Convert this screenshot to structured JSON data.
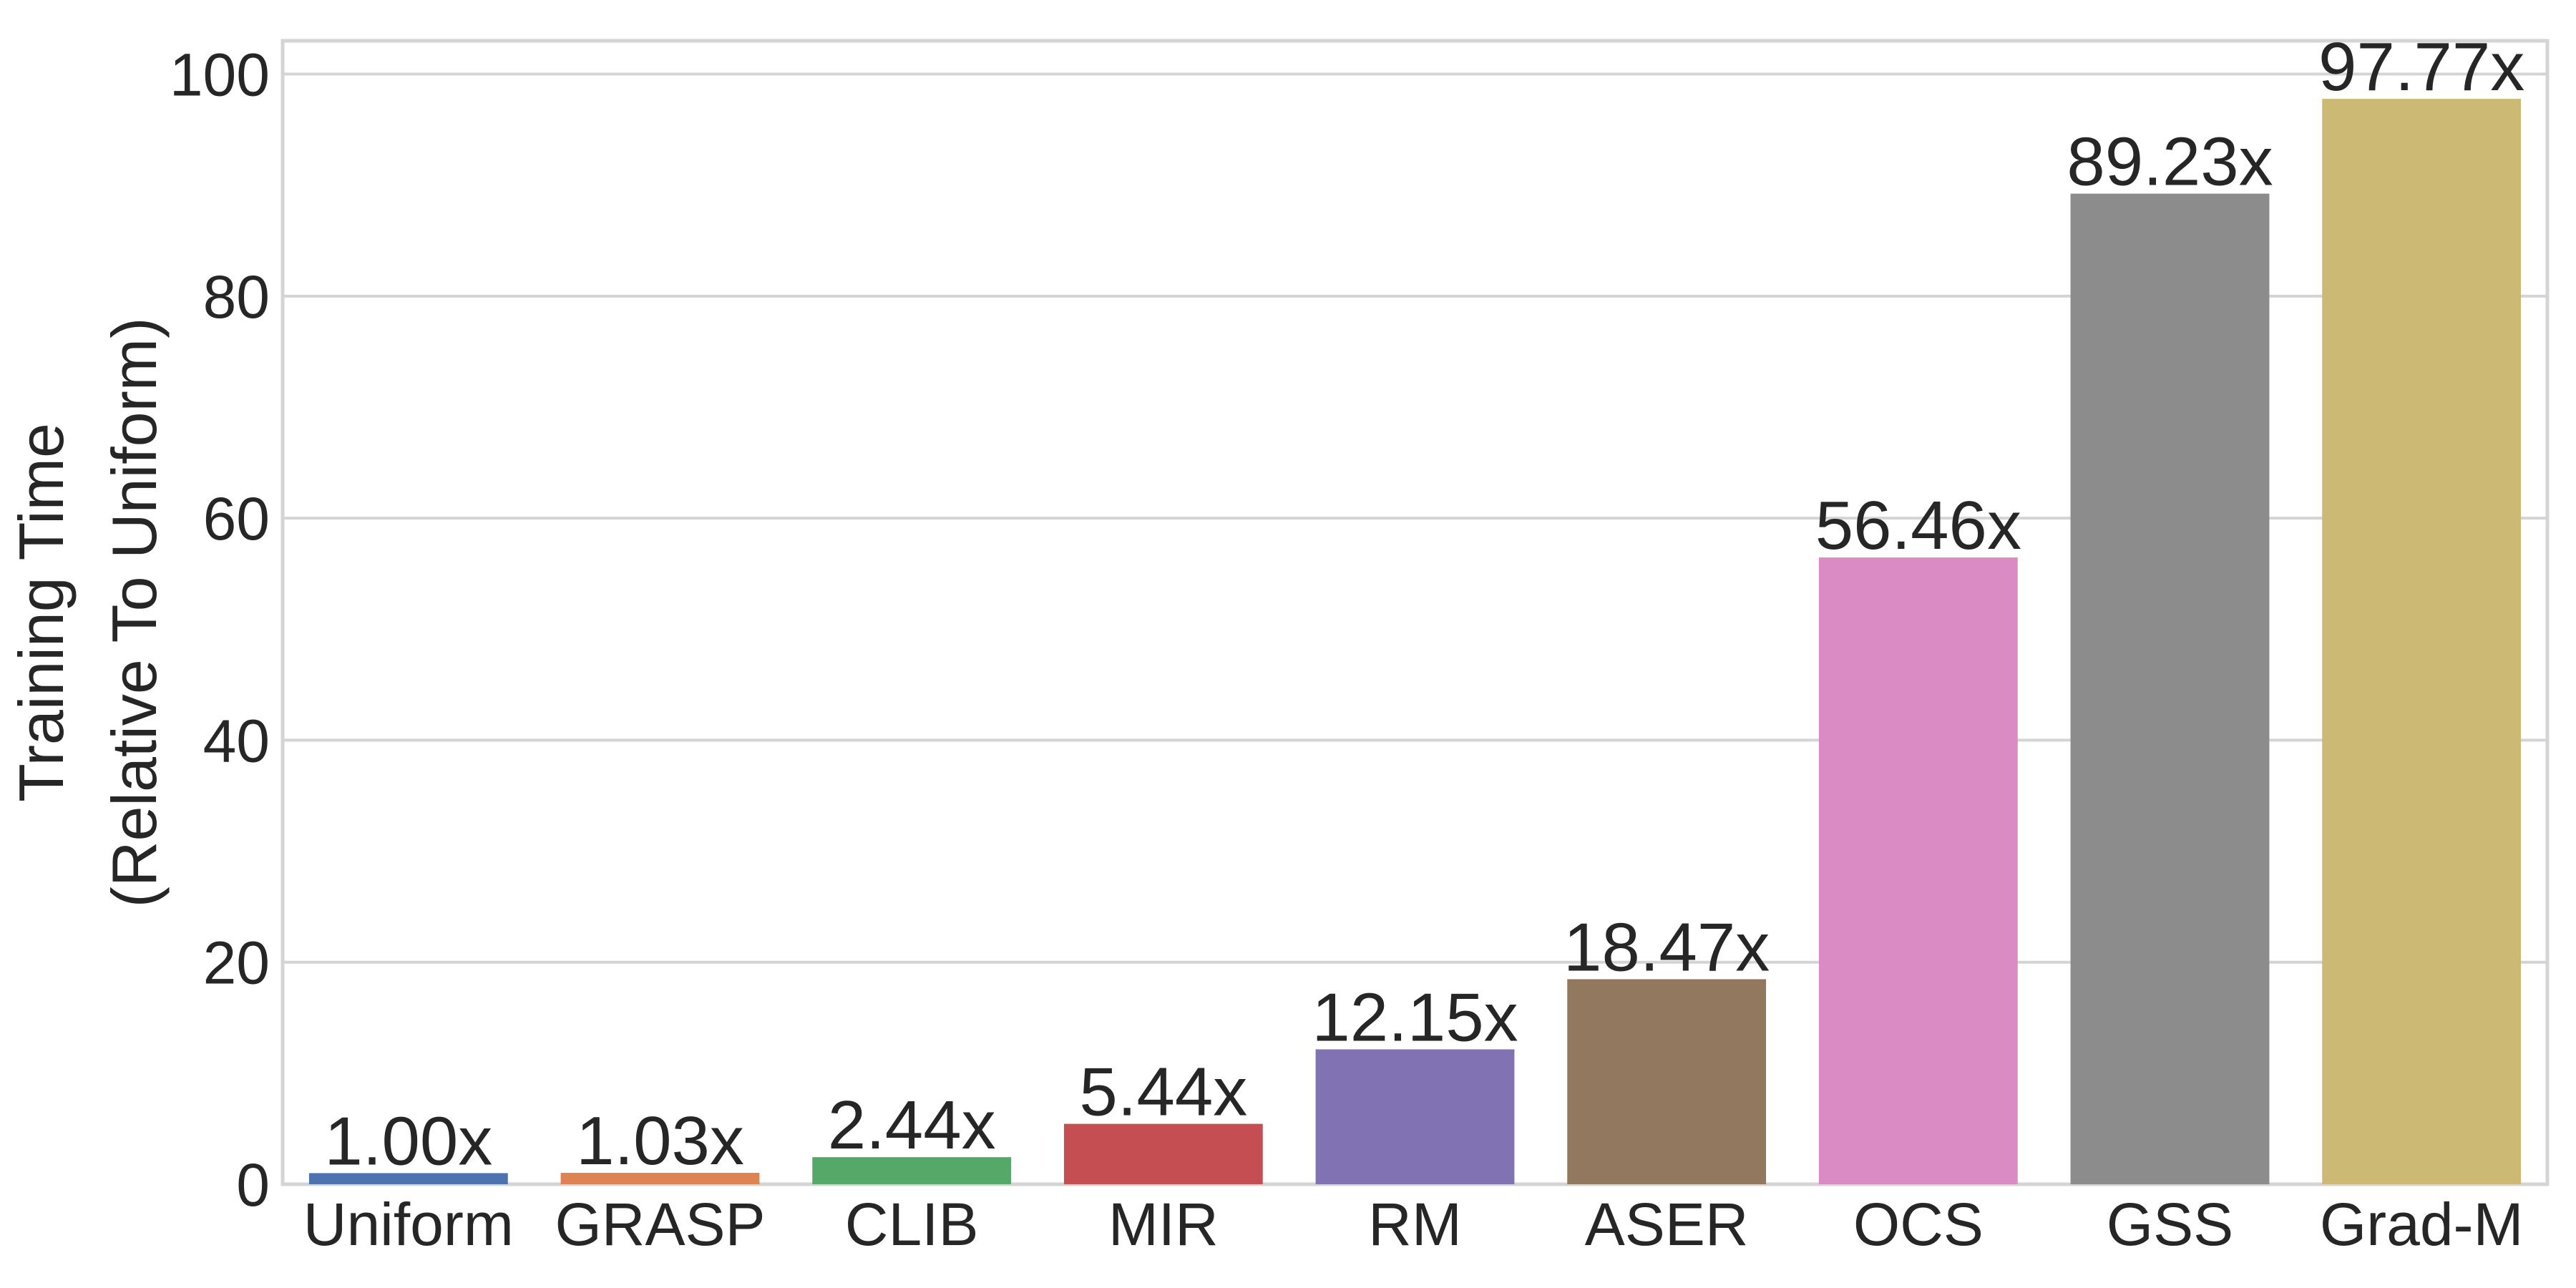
{
  "chart_data": {
    "type": "bar",
    "title": "",
    "xlabel": "",
    "ylabel_lines": [
      "Training Time",
      "(Relative To Uniform)"
    ],
    "categories": [
      "Uniform",
      "GRASP",
      "CLIB",
      "MIR",
      "RM",
      "ASER",
      "OCS",
      "GSS",
      "Grad-M"
    ],
    "values": [
      1.0,
      1.03,
      2.44,
      5.44,
      12.15,
      18.47,
      56.46,
      89.23,
      97.77
    ],
    "data_labels": [
      "1.00x",
      "1.03x",
      "2.44x",
      "5.44x",
      "12.15x",
      "18.47x",
      "56.46x",
      "89.23x",
      "97.77x"
    ],
    "colors": [
      "#4c72b0",
      "#dd8452",
      "#55a868",
      "#c44e52",
      "#8172b3",
      "#937860",
      "#da8bc3",
      "#8c8c8c",
      "#ccb974"
    ],
    "ylim": [
      0,
      103
    ],
    "yticks": [
      0,
      20,
      40,
      60,
      80,
      100
    ],
    "grid": true
  }
}
